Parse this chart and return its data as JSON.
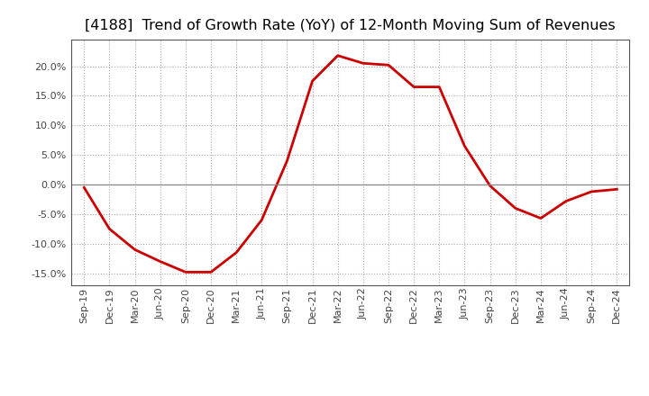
{
  "title": "[4188]  Trend of Growth Rate (YoY) of 12-Month Moving Sum of Revenues",
  "title_fontsize": 11.5,
  "line_color": "#cc0000",
  "line_width": 2.0,
  "background_color": "#ffffff",
  "plot_bg_color": "#ffffff",
  "grid_color": "#aaaaaa",
  "ylim": [
    -0.17,
    0.245
  ],
  "yticks": [
    -0.15,
    -0.1,
    -0.05,
    0.0,
    0.05,
    0.1,
    0.15,
    0.2
  ],
  "x_labels": [
    "Sep-19",
    "Dec-19",
    "Mar-20",
    "Jun-20",
    "Sep-20",
    "Dec-20",
    "Mar-21",
    "Jun-21",
    "Sep-21",
    "Dec-21",
    "Mar-22",
    "Jun-22",
    "Sep-22",
    "Dec-22",
    "Mar-23",
    "Jun-23",
    "Sep-23",
    "Dec-23",
    "Mar-24",
    "Jun-24",
    "Sep-24",
    "Dec-24"
  ],
  "y_values": [
    -0.005,
    -0.075,
    -0.11,
    -0.13,
    -0.148,
    -0.148,
    -0.115,
    -0.06,
    0.04,
    0.175,
    0.218,
    0.205,
    0.202,
    0.165,
    0.165,
    0.065,
    -0.002,
    -0.04,
    -0.057,
    -0.028,
    -0.012,
    -0.008
  ]
}
